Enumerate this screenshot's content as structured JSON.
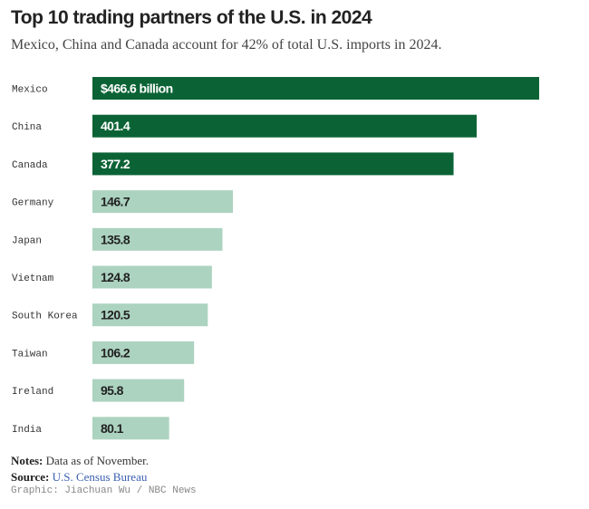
{
  "chart_data": {
    "type": "bar",
    "orientation": "horizontal",
    "title": "Top 10 trading partners of the U.S. in 2024",
    "subtitle": "Mexico, China and Canada account for 42% of total U.S. imports in 2024.",
    "categories": [
      "Mexico",
      "China",
      "Canada",
      "Germany",
      "Japan",
      "Vietnam",
      "South Korea",
      "Taiwan",
      "Ireland",
      "India"
    ],
    "values": [
      466.6,
      401.4,
      377.2,
      146.7,
      135.8,
      124.8,
      120.5,
      106.2,
      95.8,
      80.1
    ],
    "value_labels": [
      "$466.6 billion",
      "401.4",
      "377.2",
      "146.7",
      "135.8",
      "124.8",
      "120.5",
      "106.2",
      "95.8",
      "80.1"
    ],
    "highlighted": [
      true,
      true,
      true,
      false,
      false,
      false,
      false,
      false,
      false,
      false
    ],
    "unit": "billion USD",
    "xlim": [
      0,
      466.6
    ],
    "colors": {
      "highlight": "#0b6335",
      "other": "#acd3c0",
      "highlight_text": "#ffffff",
      "other_text": "#222222"
    }
  },
  "footer": {
    "notes_label": "Notes:",
    "notes_text": "Data as of November.",
    "source_label": "Source:",
    "source_text": "U.S. Census Bureau",
    "credit": "Graphic: Jiachuan Wu / NBC News"
  }
}
